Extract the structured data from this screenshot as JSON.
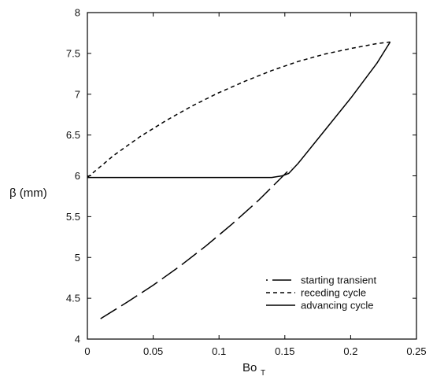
{
  "chart_data": {
    "type": "line",
    "title": "",
    "xlabel": "Bo",
    "xlabel_subscript": "T",
    "ylabel": "β (mm)",
    "xlim": [
      0,
      0.25
    ],
    "ylim": [
      4,
      8
    ],
    "xticks": [
      "0",
      "0.05",
      "0.1",
      "0.15",
      "0.2",
      "0.25"
    ],
    "yticks": [
      "4",
      "4.5",
      "5",
      "5.5",
      "6",
      "6.5",
      "7",
      "7.5",
      "8"
    ],
    "grid": false,
    "legend_position": "bottom-right",
    "series": [
      {
        "name": "starting transient",
        "style": "long-dash",
        "x": [
          0.01,
          0.03,
          0.05,
          0.07,
          0.09,
          0.11,
          0.13,
          0.15,
          0.155
        ],
        "y": [
          4.25,
          4.45,
          4.66,
          4.89,
          5.14,
          5.41,
          5.7,
          6.02,
          6.1
        ]
      },
      {
        "name": "receding cycle",
        "style": "short-dash",
        "x": [
          0.0,
          0.02,
          0.04,
          0.06,
          0.08,
          0.1,
          0.12,
          0.14,
          0.16,
          0.18,
          0.2,
          0.22,
          0.23
        ],
        "y": [
          5.98,
          6.25,
          6.48,
          6.68,
          6.86,
          7.02,
          7.16,
          7.29,
          7.4,
          7.49,
          7.56,
          7.62,
          7.64
        ]
      },
      {
        "name": "advancing cycle",
        "style": "solid",
        "x": [
          0.0,
          0.05,
          0.1,
          0.14,
          0.148,
          0.153,
          0.16,
          0.18,
          0.2,
          0.22,
          0.23
        ],
        "y": [
          5.98,
          5.98,
          5.98,
          5.98,
          6.0,
          6.03,
          6.15,
          6.55,
          6.95,
          7.38,
          7.64
        ]
      }
    ]
  }
}
